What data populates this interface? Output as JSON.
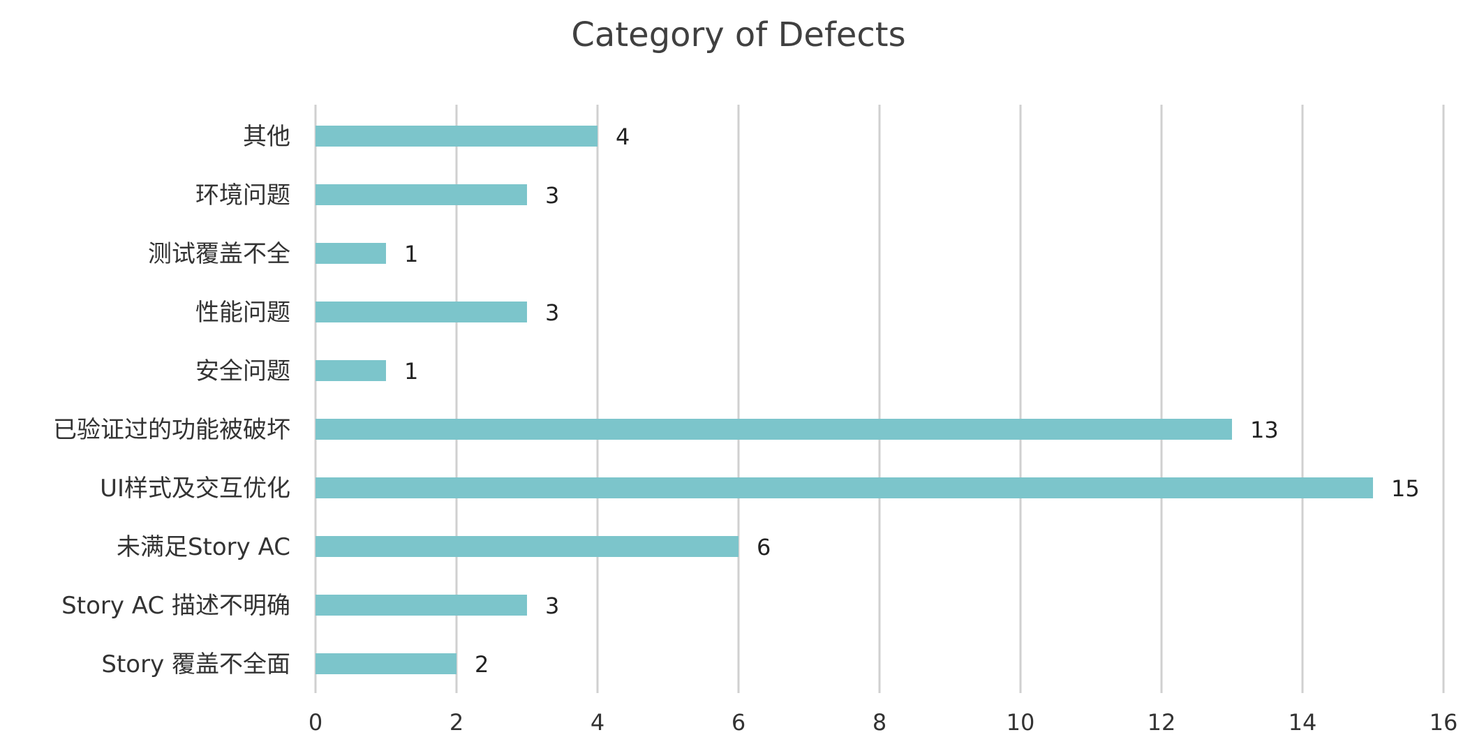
{
  "chart_data": {
    "type": "bar",
    "orientation": "horizontal",
    "title": "Category of Defects",
    "xlabel": "",
    "ylabel": "",
    "categories": [
      "其他",
      "环境问题",
      "测试覆盖不全",
      "性能问题",
      "安全问题",
      "已验证过的功能被破坏",
      "UI样式及交互优化",
      "未满足Story AC",
      "Story AC 描述不明确",
      "Story 覆盖不全面"
    ],
    "values": [
      4,
      3,
      1,
      3,
      1,
      13,
      15,
      6,
      3,
      2
    ],
    "xlim": [
      0,
      16
    ],
    "xticks": [
      0,
      2,
      4,
      6,
      8,
      10,
      12,
      14,
      16
    ],
    "xtick_labels": [
      "0",
      "2",
      "4",
      "6",
      "8",
      "10",
      "12",
      "14",
      "16"
    ],
    "data_labels": [
      "4",
      "3",
      "1",
      "3",
      "1",
      "13",
      "15",
      "6",
      "3",
      "2"
    ],
    "grid": true,
    "legend": "none",
    "bar_color": "#7CC5CB",
    "grid_color": "#D0D0D0"
  }
}
